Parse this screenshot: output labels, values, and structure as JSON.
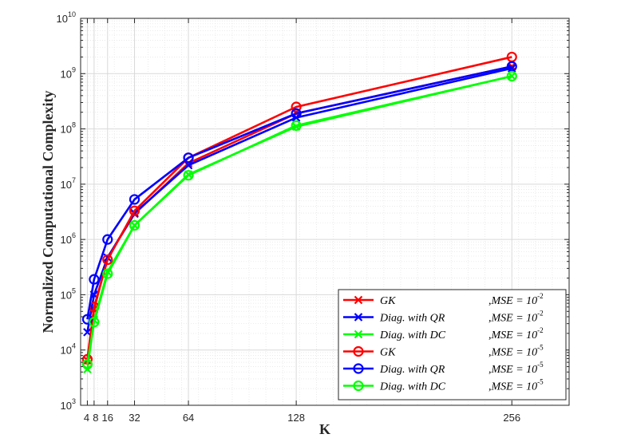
{
  "chart_data": {
    "type": "line",
    "title": "",
    "xlabel": "K",
    "ylabel": "Normalized Computational Complexity",
    "xlim": [
      0,
      290
    ],
    "x_ticks": [
      4,
      8,
      16,
      32,
      64,
      128,
      256
    ],
    "x_tick_labels": [
      "4",
      "8",
      "16",
      "32",
      "64",
      "128",
      "256"
    ],
    "y_scale": "log",
    "ylim": [
      1000,
      10000000000
    ],
    "y_ticks": [
      {
        "value": 1000,
        "base": "10",
        "exp": "3"
      },
      {
        "value": 10000,
        "base": "10",
        "exp": "4"
      },
      {
        "value": 100000,
        "base": "10",
        "exp": "5"
      },
      {
        "value": 1000000,
        "base": "10",
        "exp": "6"
      },
      {
        "value": 10000000,
        "base": "10",
        "exp": "7"
      },
      {
        "value": 100000000,
        "base": "10",
        "exp": "8"
      },
      {
        "value": 1000000000,
        "base": "10",
        "exp": "9"
      },
      {
        "value": 10000000000,
        "base": "10",
        "exp": "10"
      }
    ],
    "grid": true,
    "legend_position": "bottom-right",
    "x": [
      4,
      8,
      16,
      32,
      64,
      128,
      256
    ],
    "series": [
      {
        "method": "GK",
        "mse_exp": "-2",
        "color": "#ff0000",
        "marker": "x",
        "values": [
          6500,
          55000,
          470000,
          2900000,
          24000000,
          190000000,
          1350000000
        ]
      },
      {
        "method": "Diag. with QR",
        "mse_exp": "-2",
        "color": "#0000ff",
        "marker": "x",
        "values": [
          21000,
          100000,
          470000,
          3000000,
          22000000,
          160000000,
          1250000000
        ]
      },
      {
        "method": "Diag. with DC",
        "mse_exp": "-2",
        "color": "#00ff00",
        "marker": "x",
        "values": [
          4500,
          35000,
          260000,
          1800000,
          15000000,
          110000000,
          900000000
        ]
      },
      {
        "method": "GK",
        "mse_exp": "-5",
        "color": "#ff0000",
        "marker": "o",
        "values": [
          6800,
          60000,
          430000,
          3300000,
          30000000,
          250000000,
          2000000000
        ]
      },
      {
        "method": "Diag. with QR",
        "mse_exp": "-5",
        "color": "#0000ff",
        "marker": "o",
        "values": [
          36000,
          190000,
          1000000,
          5300000,
          30000000,
          190000000,
          1350000000
        ]
      },
      {
        "method": "Diag. with DC",
        "mse_exp": "-5",
        "color": "#00ff00",
        "marker": "o",
        "values": [
          5500,
          32000,
          240000,
          1800000,
          14500000,
          115000000,
          900000000
        ]
      }
    ],
    "legend_mse_text": "MSE = 10",
    "legend_mse_prefix": ","
  }
}
